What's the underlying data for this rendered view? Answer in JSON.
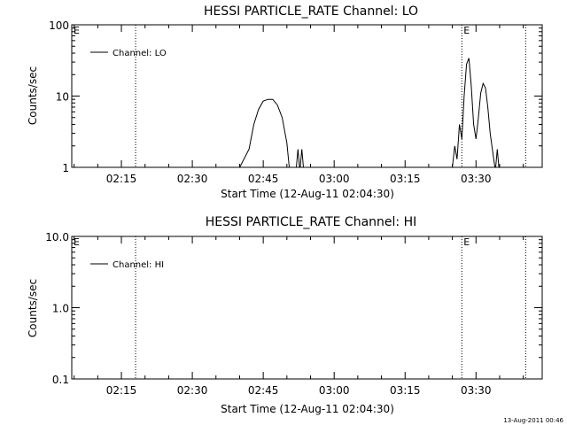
{
  "chart_data": [
    {
      "type": "line",
      "title": "HESSI PARTICLE_RATE Channel: LO",
      "xlabel": "Start Time (12-Aug-11 02:04:30)",
      "ylabel": "Counts/sec",
      "y_scale": "log",
      "ylim": [
        1,
        100
      ],
      "xlim": [
        "02:04:30",
        "03:44:00"
      ],
      "x_ticks": [
        "02:15",
        "02:30",
        "02:45",
        "03:00",
        "03:15",
        "03:30"
      ],
      "y_ticks": [
        "1",
        "10",
        "100"
      ],
      "legend": {
        "position": "top-left",
        "label": "Channel: LO"
      },
      "markers": [
        {
          "x": "02:04:30",
          "label": "E"
        },
        {
          "x": "03:27:00",
          "label": "E"
        }
      ],
      "vlines": [
        "02:18:00",
        "03:27:00",
        "03:40:30"
      ],
      "series": [
        {
          "name": "Channel: LO",
          "segments": [
            [
              [
                "02:40:00",
                1
              ],
              [
                "02:42:00",
                1.8
              ],
              [
                "02:43:00",
                4
              ],
              [
                "02:44:00",
                6.5
              ],
              [
                "02:45:00",
                8.5
              ],
              [
                "02:46:00",
                9
              ],
              [
                "02:47:00",
                9
              ],
              [
                "02:48:00",
                7.5
              ],
              [
                "02:49:00",
                5
              ],
              [
                "02:50:00",
                2.2
              ],
              [
                "02:50:30",
                1
              ]
            ],
            [
              [
                "02:52:00",
                1
              ],
              [
                "02:52:20",
                1.8
              ],
              [
                "02:52:40",
                1
              ]
            ],
            [
              [
                "02:52:50",
                1
              ],
              [
                "02:53:10",
                1.8
              ],
              [
                "02:53:30",
                1
              ]
            ],
            [
              [
                "03:25:00",
                1
              ],
              [
                "03:25:30",
                2
              ],
              [
                "03:26:00",
                1.3
              ],
              [
                "03:26:30",
                4
              ],
              [
                "03:27:00",
                2.5
              ],
              [
                "03:27:30",
                10
              ],
              [
                "03:28:00",
                28
              ],
              [
                "03:28:30",
                34
              ],
              [
                "03:29:00",
                14
              ],
              [
                "03:29:30",
                4
              ],
              [
                "03:30:00",
                2.5
              ],
              [
                "03:30:30",
                5
              ],
              [
                "03:31:00",
                11
              ],
              [
                "03:31:30",
                15
              ],
              [
                "03:32:00",
                13
              ],
              [
                "03:32:30",
                7
              ],
              [
                "03:33:00",
                3
              ],
              [
                "03:33:30",
                1.7
              ],
              [
                "03:34:00",
                1
              ]
            ],
            [
              [
                "03:34:10",
                1
              ],
              [
                "03:34:30",
                1.8
              ],
              [
                "03:34:50",
                1
              ]
            ]
          ]
        }
      ]
    },
    {
      "type": "line",
      "title": "HESSI PARTICLE_RATE Channel: HI",
      "xlabel": "Start Time (12-Aug-11 02:04:30)",
      "ylabel": "Counts/sec",
      "y_scale": "log",
      "ylim": [
        0.1,
        10
      ],
      "xlim": [
        "02:04:30",
        "03:44:00"
      ],
      "x_ticks": [
        "02:15",
        "02:30",
        "02:45",
        "03:00",
        "03:15",
        "03:30"
      ],
      "y_ticks": [
        "0.1",
        "1.0",
        "10.0"
      ],
      "legend": {
        "position": "top-left",
        "label": "Channel: HI"
      },
      "markers": [
        {
          "x": "02:04:30",
          "label": "E"
        },
        {
          "x": "03:27:00",
          "label": "E"
        }
      ],
      "vlines": [
        "02:18:00",
        "03:27:00",
        "03:40:30"
      ],
      "series": [
        {
          "name": "Channel: HI",
          "segments": []
        }
      ]
    }
  ],
  "footer": {
    "timestamp": "13-Aug-2011 00:46"
  }
}
